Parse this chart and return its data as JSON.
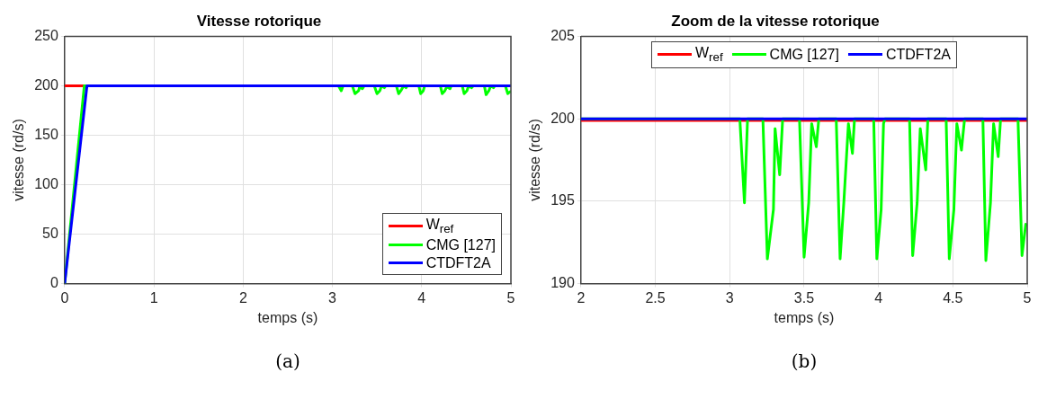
{
  "chart_data": [
    {
      "type": "line",
      "title": "Vitesse rotorique",
      "xlabel": "temps (s)",
      "ylabel": "vitesse (rd/s)",
      "xlim": [
        0,
        5
      ],
      "xticks": [
        0,
        1,
        2,
        3,
        4,
        5
      ],
      "ylim": [
        0,
        250
      ],
      "yticks": [
        0,
        50,
        100,
        150,
        200,
        250
      ],
      "grid": true,
      "legend": "bottom right",
      "marker": "none",
      "line_style": "solid",
      "annotations": [
        "(a)"
      ],
      "series": [
        {
          "name": "W$_{ref}$",
          "color": "#ff0000",
          "x": [
            0,
            0.25
          ],
          "values": [
            200,
            200
          ]
        },
        {
          "name": "CMG [127]",
          "color": "#00ff00",
          "x": [
            0,
            0.22,
            3.068,
            3.099,
            3.12,
            3.223,
            3.253,
            3.294,
            3.305,
            3.336,
            3.356,
            3.469,
            3.5,
            3.531,
            3.551,
            3.582,
            3.599,
            3.716,
            3.742,
            3.767,
            3.798,
            3.825,
            3.839,
            3.968,
            3.989,
            4.018,
            4.034,
            4.044,
            4.209,
            4.23,
            4.26,
            4.281,
            4.318,
            4.332,
            4.455,
            4.476,
            4.507,
            4.527,
            4.558,
            4.579,
            4.702,
            4.722,
            4.753,
            4.774,
            4.805,
            4.821,
            4.938,
            4.965,
            4.99,
            5
          ],
          "values": [
            0,
            200,
            200,
            195,
            200,
            200,
            192,
            195,
            199,
            197,
            200,
            200,
            192,
            195,
            200,
            198,
            200,
            200,
            192,
            195,
            200,
            198,
            200,
            200,
            192,
            195,
            200,
            200,
            200,
            192,
            195,
            199,
            197,
            200,
            200,
            192,
            195,
            200,
            198,
            200,
            200,
            191,
            195,
            200,
            198,
            200,
            200,
            192,
            194,
            194
          ]
        },
        {
          "name": "CTDFT2A",
          "color": "#0000ff",
          "x": [
            0,
            0.25,
            5
          ],
          "values": [
            0,
            200,
            200
          ]
        }
      ]
    },
    {
      "type": "line",
      "title": "Zoom de la vitesse rotorique",
      "xlabel": "temps (s)",
      "ylabel": "vitesse (rd/s)",
      "xlim": [
        2,
        5
      ],
      "xticks": [
        2,
        2.5,
        3,
        3.5,
        4,
        4.5,
        5
      ],
      "ylim": [
        190,
        205
      ],
      "yticks": [
        190,
        195,
        200,
        205
      ],
      "grid": true,
      "legend": "top",
      "marker": "none",
      "line_style": "solid",
      "annotations": [
        "(b)"
      ],
      "series": [
        {
          "name": "W$_{ref}$",
          "color": "#ff0000",
          "x": [
            2,
            5
          ],
          "values": [
            199.9,
            199.9
          ]
        },
        {
          "name": "CMG [127]",
          "color": "#00ff00",
          "x": [
            2,
            3.068,
            3.099,
            3.12,
            3.223,
            3.253,
            3.294,
            3.305,
            3.336,
            3.356,
            3.469,
            3.5,
            3.531,
            3.551,
            3.582,
            3.599,
            3.716,
            3.742,
            3.767,
            3.798,
            3.825,
            3.839,
            3.968,
            3.989,
            4.018,
            4.034,
            4.044,
            4.209,
            4.23,
            4.26,
            4.281,
            4.318,
            4.332,
            4.455,
            4.476,
            4.507,
            4.527,
            4.558,
            4.579,
            4.702,
            4.722,
            4.753,
            4.774,
            4.805,
            4.821,
            4.938,
            4.965,
            4.99,
            5
          ],
          "values": [
            200,
            200,
            194.9,
            200,
            200,
            191.5,
            194.5,
            199.4,
            196.6,
            200,
            200,
            191.6,
            194.9,
            199.7,
            198.3,
            200,
            200,
            191.5,
            194.9,
            199.7,
            197.9,
            200,
            200,
            191.5,
            194.5,
            199.7,
            200,
            200,
            191.7,
            194.9,
            199.4,
            196.9,
            200,
            200,
            191.5,
            194.5,
            199.7,
            198.1,
            200,
            200,
            191.4,
            194.9,
            199.7,
            197.7,
            200,
            200,
            191.7,
            193.6,
            193.5
          ]
        },
        {
          "name": "CTDFT2A",
          "color": "#0000ff",
          "x": [
            2,
            5
          ],
          "values": [
            200,
            200
          ]
        }
      ]
    }
  ]
}
